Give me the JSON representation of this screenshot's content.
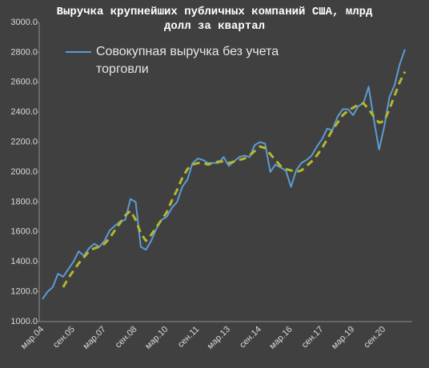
{
  "chart_data": {
    "type": "line",
    "title": "Выручка крупнейших публичных компаний США, млрд долл за квартал",
    "categories": [
      "мар.04",
      null,
      null,
      null,
      null,
      null,
      "сен.05",
      null,
      null,
      null,
      null,
      null,
      "мар.07",
      null,
      null,
      null,
      null,
      null,
      "сен.08",
      null,
      null,
      null,
      null,
      null,
      "мар.10",
      null,
      null,
      null,
      null,
      null,
      "сен.11",
      null,
      null,
      null,
      null,
      null,
      "мар.13",
      null,
      null,
      null,
      null,
      null,
      "сен.14",
      null,
      null,
      null,
      null,
      null,
      "мар.16",
      null,
      null,
      null,
      null,
      null,
      "сен.17",
      null,
      null,
      null,
      null,
      null,
      "мар.19",
      null,
      null,
      null,
      null,
      null,
      "сен.20",
      null,
      null,
      null,
      null
    ],
    "series": [
      {
        "name": "Совокупная выручка без учета торговли",
        "color": "#5b9bd5",
        "dashed": false,
        "values": [
          1150,
          1200,
          1230,
          1320,
          1300,
          1350,
          1400,
          1470,
          1440,
          1490,
          1520,
          1500,
          1540,
          1610,
          1640,
          1670,
          1680,
          1820,
          1800,
          1500,
          1480,
          1540,
          1620,
          1680,
          1700,
          1760,
          1800,
          1900,
          1950,
          2060,
          2090,
          2080,
          2060,
          2060,
          2060,
          2100,
          2040,
          2070,
          2100,
          2110,
          2100,
          2180,
          2200,
          2190,
          2000,
          2050,
          2030,
          2010,
          1900,
          2010,
          2060,
          2080,
          2110,
          2170,
          2220,
          2290,
          2280,
          2370,
          2420,
          2420,
          2380,
          2440,
          2460,
          2570,
          2350,
          2150,
          2300,
          2500,
          2580,
          2720,
          2820
        ]
      },
      {
        "color": "#b5b82a",
        "dashed": true,
        "values": [
          null,
          null,
          null,
          null,
          1230,
          1290,
          1340,
          1390,
          1430,
          1470,
          1490,
          1500,
          1520,
          1560,
          1610,
          1660,
          1710,
          1740,
          1680,
          1590,
          1540,
          1580,
          1630,
          1680,
          1730,
          1810,
          1880,
          1960,
          2020,
          2050,
          2060,
          2060,
          2050,
          2060,
          2070,
          2070,
          2060,
          2070,
          2080,
          2090,
          2110,
          2140,
          2170,
          2160,
          2120,
          2080,
          2040,
          2020,
          2010,
          2000,
          2010,
          2040,
          2070,
          2110,
          2160,
          2220,
          2280,
          2330,
          2380,
          2410,
          2430,
          2450,
          2460,
          2420,
          2370,
          2330,
          2340,
          2420,
          2510,
          2600,
          2670
        ]
      }
    ],
    "ylim": [
      1000,
      3000
    ],
    "yticks": [
      {
        "value": 1000,
        "label": "1000.0"
      },
      {
        "value": 1200,
        "label": "1200.0"
      },
      {
        "value": 1400,
        "label": "1400.0"
      },
      {
        "value": 1600,
        "label": "1600.0"
      },
      {
        "value": 1800,
        "label": "1800.0"
      },
      {
        "value": 2000,
        "label": "2000.0"
      },
      {
        "value": 2200,
        "label": "2200.0"
      },
      {
        "value": 2400,
        "label": "2400.0"
      },
      {
        "value": 2600,
        "label": "2600.0"
      },
      {
        "value": 2800,
        "label": "2800.0"
      },
      {
        "value": 3000,
        "label": "3000.0"
      }
    ],
    "grid": false
  }
}
